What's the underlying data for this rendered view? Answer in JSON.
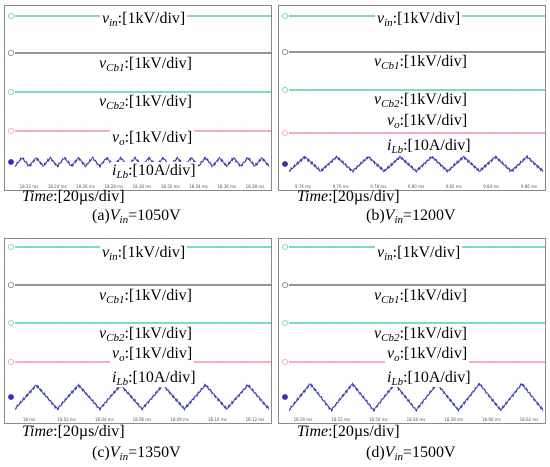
{
  "chart_data": [
    {
      "type": "line",
      "caption_prefix": "(a)",
      "caption_var": "V",
      "caption_sub": "in",
      "caption_value": "=1050V",
      "time_label": "Time",
      "time_div": ":[20µs/div]",
      "x_ticks": [
        "18.22 ms",
        "18.24 ms",
        "18.26 ms",
        "18.28 ms",
        "18.30 ms",
        "18.32 ms",
        "18.34 ms",
        "18.36 ms",
        "18.38 ms"
      ],
      "traces": [
        {
          "var": "v",
          "sub": "in",
          "scale": ":[1kV/div]",
          "color": "#2fc4a4",
          "channel": "C4"
        },
        {
          "var": "v",
          "sub": "Cb1",
          "scale": ":[1kV/div]",
          "color": "#555555",
          "channel": "C3"
        },
        {
          "var": "v",
          "sub": "Cb2",
          "scale": ":[1kV/div]",
          "color": "#2fc4a4",
          "channel": "C2"
        },
        {
          "var": "v",
          "sub": "o",
          "scale": ":[1kV/div]",
          "color": "#f08090",
          "channel": "C1"
        },
        {
          "var": "i",
          "sub": "Lb",
          "scale": ":[10A/div]",
          "color": "#3333aa",
          "channel": "C5"
        }
      ],
      "ripple_cycles": 18,
      "ripple_amplitude": 0.35
    },
    {
      "type": "line",
      "caption_prefix": "(b)",
      "caption_var": "V",
      "caption_sub": "in",
      "caption_value": "=1200V",
      "time_label": "Time",
      "time_div": ":[20µs/div]",
      "x_ticks": [
        "9.74 ms",
        "9.76 ms",
        "9.78 ms",
        "9.80 ms",
        "9.82 ms",
        "9.84 ms",
        "9.86 ms"
      ],
      "traces": [
        {
          "var": "v",
          "sub": "in",
          "scale": ":[1kV/div]",
          "color": "#2fc4a4",
          "channel": "C4"
        },
        {
          "var": "v",
          "sub": "Cb1",
          "scale": ":[1kV/div]",
          "color": "#555555",
          "channel": "C3"
        },
        {
          "var": "v",
          "sub": "Cb2",
          "scale": ":[1kV/div]",
          "color": "#2fc4a4",
          "channel": "C2"
        },
        {
          "var": "v",
          "sub": "o",
          "scale": ":[1kV/div]",
          "color": "#f08090",
          "channel": "C1"
        },
        {
          "var": "i",
          "sub": "Lb",
          "scale": ":[10A/div]",
          "color": "#3333aa",
          "channel": "C5"
        }
      ],
      "ripple_cycles": 8,
      "ripple_amplitude": 0.6
    },
    {
      "type": "line",
      "caption_prefix": "(c)",
      "caption_var": "V",
      "caption_sub": "in",
      "caption_value": "=1350V",
      "time_label": "Time",
      "time_div": ":[20µs/div]",
      "x_ticks": [
        "18 ms",
        "18.02 ms",
        "18.04 ms",
        "18.06 ms",
        "18.08 ms",
        "18.10 ms",
        "18.12 ms"
      ],
      "traces": [
        {
          "var": "v",
          "sub": "in",
          "scale": ":[1kV/div]",
          "color": "#2fc4a4",
          "channel": "C4"
        },
        {
          "var": "v",
          "sub": "Cb1",
          "scale": ":[1kV/div]",
          "color": "#555555",
          "channel": "C3"
        },
        {
          "var": "v",
          "sub": "Cb2",
          "scale": ":[1kV/div]",
          "color": "#2fc4a4",
          "channel": "C2"
        },
        {
          "var": "v",
          "sub": "o",
          "scale": ":[1kV/div]",
          "color": "#f08090",
          "channel": "C1"
        },
        {
          "var": "i",
          "sub": "Lb",
          "scale": ":[10A/div]",
          "color": "#3333aa",
          "channel": "C5"
        }
      ],
      "ripple_cycles": 6,
      "ripple_amplitude": 1.0
    },
    {
      "type": "line",
      "caption_prefix": "(d)",
      "caption_var": "V",
      "caption_sub": "in",
      "caption_value": "=1500V",
      "time_label": "Time",
      "time_div": ":[20µs/div]",
      "x_ticks": [
        "18.50 ms",
        "18.52 ms",
        "18.54 ms",
        "18.56 ms",
        "18.58 ms",
        "18.60 ms",
        "18.62 ms"
      ],
      "traces": [
        {
          "var": "v",
          "sub": "in",
          "scale": ":[1kV/div]",
          "color": "#2fc4a4",
          "channel": "C4"
        },
        {
          "var": "v",
          "sub": "Cb1",
          "scale": ":[1kV/div]",
          "color": "#555555",
          "channel": "C3"
        },
        {
          "var": "v",
          "sub": "Cb2",
          "scale": ":[1kV/div]",
          "color": "#2fc4a4",
          "channel": "C2"
        },
        {
          "var": "v",
          "sub": "o",
          "scale": ":[1kV/div]",
          "color": "#f08090",
          "channel": "C1"
        },
        {
          "var": "i",
          "sub": "Lb",
          "scale": ":[10A/div]",
          "color": "#3333aa",
          "channel": "C5"
        }
      ],
      "ripple_cycles": 6,
      "ripple_amplitude": 1.1
    }
  ]
}
